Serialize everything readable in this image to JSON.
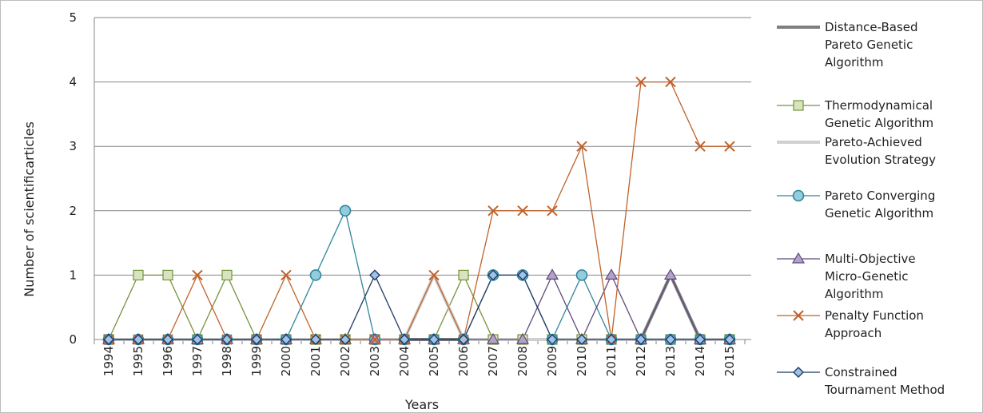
{
  "chart_data": {
    "type": "line",
    "title": "",
    "xlabel": "Years",
    "ylabel": "Number of scientificarticles",
    "ylim": [
      0,
      5
    ],
    "yticks": [
      "0",
      "1",
      "2",
      "3",
      "4",
      "5"
    ],
    "grid": "horizontal",
    "legend_position": "right",
    "categories": [
      "1994",
      "1995",
      "1996",
      "1997",
      "1998",
      "1999",
      "2000",
      "2001",
      "2002",
      "2003",
      "2004",
      "2005",
      "2006",
      "2007",
      "2008",
      "2009",
      "2010",
      "2011",
      "2012",
      "2013",
      "2014",
      "2015"
    ],
    "series": [
      {
        "name": "Distance-Based Pareto Genetic Algorithm",
        "legend_lines": [
          "Distance-Based",
          "Pareto Genetic",
          "Algorithm"
        ],
        "color": "#7f7f7f",
        "marker": "none",
        "width": 4,
        "values": [
          0,
          0,
          0,
          0,
          0,
          0,
          0,
          0,
          0,
          0,
          0,
          0,
          0,
          0,
          0,
          0,
          0,
          0,
          0,
          1,
          0,
          0
        ]
      },
      {
        "name": "Thermodynamical Genetic Algorithm",
        "legend_lines": [
          "Thermodynamical",
          "Genetic Algorithm"
        ],
        "color": "#76923c",
        "fill": "#d7e4bd",
        "marker": "square",
        "width": 1.3,
        "values": [
          0,
          1,
          1,
          0,
          1,
          0,
          0,
          0,
          0,
          0,
          0,
          0,
          1,
          0,
          0,
          0,
          0,
          0,
          0,
          0,
          0,
          0
        ]
      },
      {
        "name": "Pareto-Achieved Evolution Strategy",
        "legend_lines": [
          "Pareto-Achieved",
          "Evolution Strategy"
        ],
        "color": "#d0d0d0",
        "marker": "none",
        "width": 4,
        "values": [
          0,
          0,
          0,
          0,
          0,
          0,
          0,
          0,
          0,
          0,
          0,
          1,
          0,
          0,
          0,
          0,
          0,
          0,
          0,
          0,
          0,
          0
        ]
      },
      {
        "name": "Pareto Converging Genetic Algorithm",
        "legend_lines": [
          "Pareto Converging",
          "Genetic Algorithm"
        ],
        "color": "#31859c",
        "fill": "#93cddd",
        "marker": "circle",
        "width": 1.3,
        "values": [
          0,
          0,
          0,
          0,
          0,
          0,
          0,
          1,
          2,
          0,
          0,
          0,
          0,
          1,
          1,
          0,
          1,
          0,
          0,
          0,
          0,
          0
        ]
      },
      {
        "name": "Multi-Objective Micro-Genetic Algorithm",
        "legend_lines": [
          "Multi-Objective",
          "Micro-Genetic",
          "Algorithm"
        ],
        "color": "#5f497a",
        "fill": "#b3a2c7",
        "marker": "triangle",
        "width": 1.3,
        "values": [
          0,
          0,
          0,
          0,
          0,
          0,
          0,
          0,
          0,
          0,
          0,
          0,
          0,
          0,
          0,
          1,
          0,
          1,
          0,
          1,
          0,
          0
        ]
      },
      {
        "name": "Penalty Function Approach",
        "legend_lines": [
          "Penalty Function",
          "Approach"
        ],
        "color": "#c0622a",
        "marker": "x",
        "width": 1.3,
        "values": [
          0,
          0,
          0,
          1,
          0,
          0,
          1,
          0,
          0,
          0,
          0,
          1,
          0,
          2,
          2,
          2,
          3,
          0,
          4,
          4,
          3,
          3
        ]
      },
      {
        "name": "Constrained Tournament Method",
        "legend_lines": [
          "Constrained",
          "Tournament Method"
        ],
        "color": "#1f3864",
        "fill": "#9dc3e6",
        "marker": "diamond",
        "width": 1.3,
        "values": [
          0,
          0,
          0,
          0,
          0,
          0,
          0,
          0,
          0,
          1,
          0,
          0,
          0,
          1,
          1,
          0,
          0,
          0,
          0,
          0,
          0,
          0
        ]
      }
    ]
  }
}
